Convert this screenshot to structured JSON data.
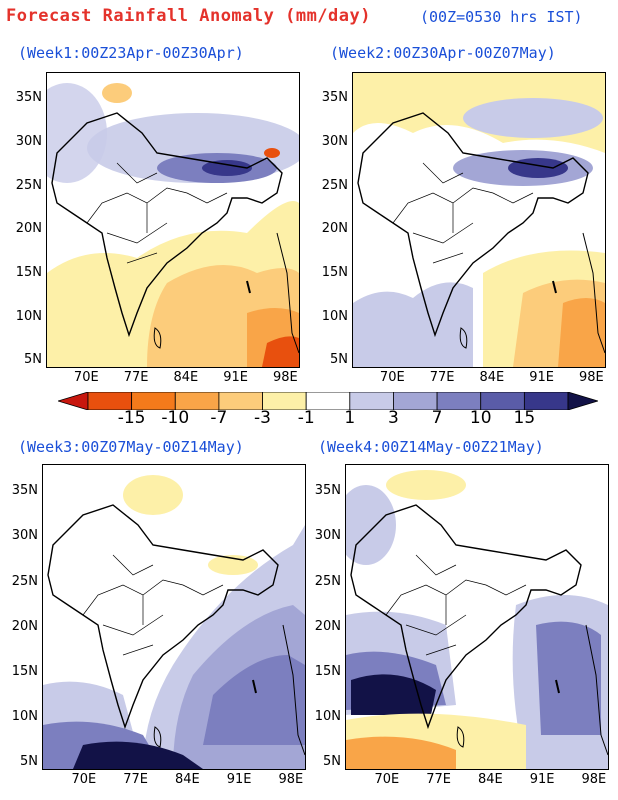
{
  "header": {
    "title": "Forecast Rainfall Anomaly (mm/day)",
    "note": "(00Z=0530 hrs IST)"
  },
  "panels": [
    {
      "id": "week1",
      "label": "(Week1:00Z23Apr-00Z30Apr)"
    },
    {
      "id": "week2",
      "label": "(Week2:00Z30Apr-00Z07May)"
    },
    {
      "id": "week3",
      "label": "(Week3:00Z07May-00Z14May)"
    },
    {
      "id": "week4",
      "label": "(Week4:00Z14May-00Z21May)"
    }
  ],
  "axes": {
    "lat_labels": [
      "35N",
      "30N",
      "25N",
      "20N",
      "15N",
      "10N",
      "5N"
    ],
    "lon_labels": [
      "70E",
      "77E",
      "84E",
      "91E",
      "98E"
    ]
  },
  "colorbar": {
    "labels": [
      "-15",
      "-10",
      "-7",
      "-3",
      "-1",
      "1",
      "3",
      "7",
      "10",
      "15"
    ],
    "colors": [
      "#c8170e",
      "#e8500e",
      "#f47a1b",
      "#f9a548",
      "#fccc7b",
      "#fdf0a8",
      "#ffffff",
      "#c8cbe8",
      "#a3a6d5",
      "#7c7fbf",
      "#5a5ca8",
      "#37378a",
      "#121247"
    ]
  }
}
